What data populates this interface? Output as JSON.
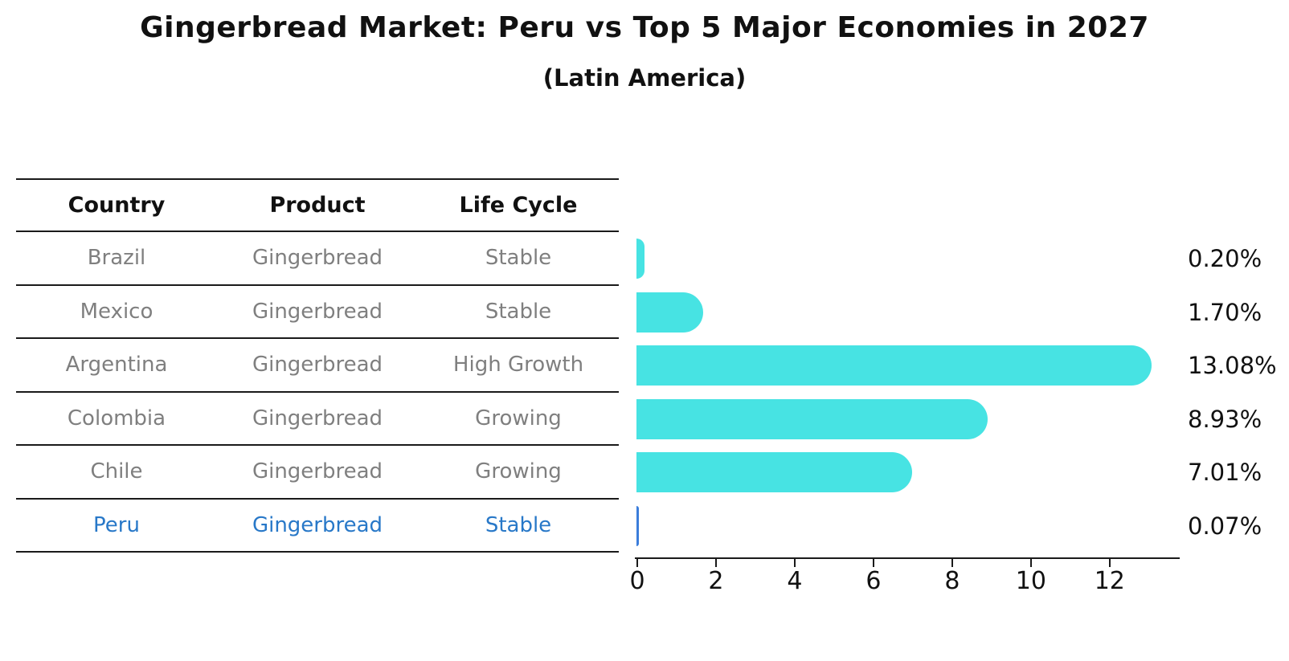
{
  "title": "Gingerbread Market: Peru vs Top 5 Major Economies in 2027",
  "subtitle": "(Latin America)",
  "table": {
    "headers": [
      "Country",
      "Product",
      "Life Cycle"
    ],
    "rows": [
      {
        "country": "Brazil",
        "product": "Gingerbread",
        "life_cycle": "Stable",
        "highlight": false
      },
      {
        "country": "Mexico",
        "product": "Gingerbread",
        "life_cycle": "Stable",
        "highlight": false
      },
      {
        "country": "Argentina",
        "product": "Gingerbread",
        "life_cycle": "High Growth",
        "highlight": false
      },
      {
        "country": "Colombia",
        "product": "Gingerbread",
        "life_cycle": "Growing",
        "highlight": false
      },
      {
        "country": "Chile",
        "product": "Gingerbread",
        "life_cycle": "Growing",
        "highlight": true
      }
    ],
    "highlight_row": {
      "country": "Peru",
      "product": "Gingerbread",
      "life_cycle": "Stable"
    }
  },
  "chart_data": {
    "type": "bar",
    "orientation": "horizontal",
    "title": "Gingerbread Market: Peru vs Top 5 Major Economies in 2027",
    "subtitle": "(Latin America)",
    "categories": [
      "Brazil",
      "Mexico",
      "Argentina",
      "Colombia",
      "Chile",
      "Peru"
    ],
    "values": [
      0.2,
      1.7,
      13.08,
      8.93,
      7.01,
      0.07
    ],
    "value_labels": [
      "0.20%",
      "1.70%",
      "13.08%",
      "8.93%",
      "7.01%",
      "0.07%"
    ],
    "x_ticks": [
      0,
      2,
      4,
      6,
      8,
      10,
      12
    ],
    "xlim": [
      0,
      13.8
    ],
    "grid": false,
    "legend": "none",
    "highlight_index": 5
  },
  "colors": {
    "bar": "#47e3e3",
    "highlight_bar": "#3b7ddb",
    "highlight_text": "#2878c8",
    "cell_text": "#7f7f7f",
    "line": "#1a1a1a"
  }
}
